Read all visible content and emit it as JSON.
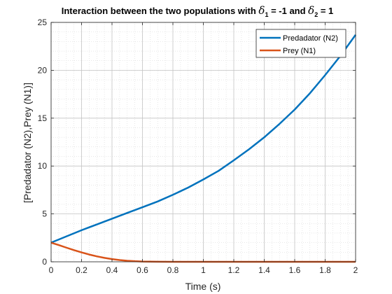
{
  "chart_data": {
    "type": "line",
    "title_prefix": "Interaction between the two populations with ",
    "delta_symbol": "δ",
    "delta1_sub": "1",
    "delta1_value": " = -1 and ",
    "delta2_sub": "2",
    "delta2_value": " = 1",
    "xlabel": "Time (s)",
    "ylabel": "[Predadator (N2),Prey (N1)]",
    "xlim": [
      0,
      2
    ],
    "ylim": [
      0,
      25
    ],
    "xticks": [
      0,
      0.2,
      0.4,
      0.6,
      0.8,
      1,
      1.2,
      1.4,
      1.6,
      1.8,
      2
    ],
    "xtick_labels": [
      "0",
      "0.2",
      "0.4",
      "0.6",
      "0.8",
      "1",
      "1.2",
      "1.4",
      "1.6",
      "1.8",
      "2"
    ],
    "yticks": [
      0,
      5,
      10,
      15,
      20,
      25
    ],
    "ytick_labels": [
      "0",
      "5",
      "10",
      "15",
      "20",
      "25"
    ],
    "grid": true,
    "minor_grid": true,
    "legend_position": "top-right",
    "series": [
      {
        "name": "Predadator (N2)",
        "color": "#0072BD",
        "x": [
          0,
          0.1,
          0.2,
          0.3,
          0.4,
          0.5,
          0.6,
          0.7,
          0.8,
          0.9,
          1.0,
          1.1,
          1.2,
          1.3,
          1.4,
          1.5,
          1.6,
          1.7,
          1.8,
          1.9,
          2.0
        ],
        "y": [
          2.0,
          2.65,
          3.3,
          3.9,
          4.5,
          5.1,
          5.7,
          6.3,
          7.0,
          7.75,
          8.6,
          9.5,
          10.6,
          11.75,
          13.0,
          14.4,
          15.9,
          17.6,
          19.5,
          21.5,
          23.7
        ]
      },
      {
        "name": "Prey (N1)",
        "color": "#D95319",
        "x": [
          0,
          0.05,
          0.1,
          0.15,
          0.2,
          0.25,
          0.3,
          0.35,
          0.4,
          0.45,
          0.5,
          0.55,
          0.6,
          0.7,
          0.8,
          0.9,
          1.0,
          1.2,
          1.4,
          1.6,
          1.8,
          2.0
        ],
        "y": [
          2.0,
          1.75,
          1.48,
          1.22,
          0.98,
          0.76,
          0.57,
          0.41,
          0.28,
          0.18,
          0.11,
          0.06,
          0.03,
          0.01,
          0.0,
          0.0,
          0.0,
          0.0,
          0.0,
          0.0,
          0.0,
          0.0
        ]
      }
    ]
  }
}
